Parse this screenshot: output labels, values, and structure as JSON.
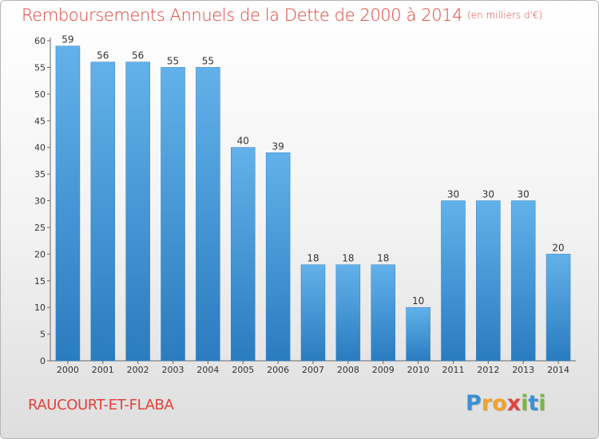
{
  "chart_data": {
    "type": "bar",
    "title": "Remboursements Annuels de la Dette de 2000 à 2014",
    "unit_note": "(en milliers d'€)",
    "categories": [
      "2000",
      "2001",
      "2002",
      "2003",
      "2004",
      "2005",
      "2006",
      "2007",
      "2008",
      "2009",
      "2010",
      "2011",
      "2012",
      "2013",
      "2014"
    ],
    "values": [
      59,
      56,
      56,
      55,
      55,
      40,
      39,
      18,
      18,
      18,
      10,
      30,
      30,
      30,
      20
    ],
    "ylim": [
      0,
      60
    ],
    "yticks": [
      0,
      5,
      10,
      15,
      20,
      25,
      30,
      35,
      40,
      45,
      50,
      55,
      60
    ],
    "xlabel": "",
    "ylabel": "",
    "grid": false,
    "bar_color_top": "#62b1ea",
    "bar_color_bottom": "#2a7cc0"
  },
  "footer": {
    "place_name": "RAUCOURT-ET-FLABA",
    "logo_letters": [
      "P",
      "r",
      "o",
      "x",
      "i",
      "t",
      "i"
    ],
    "logo_colors": [
      "#3b8fd6",
      "#f0a22e",
      "#f0a22e",
      "#e04444",
      "#79b83d",
      "#3b8fd6",
      "#79b83d"
    ]
  }
}
